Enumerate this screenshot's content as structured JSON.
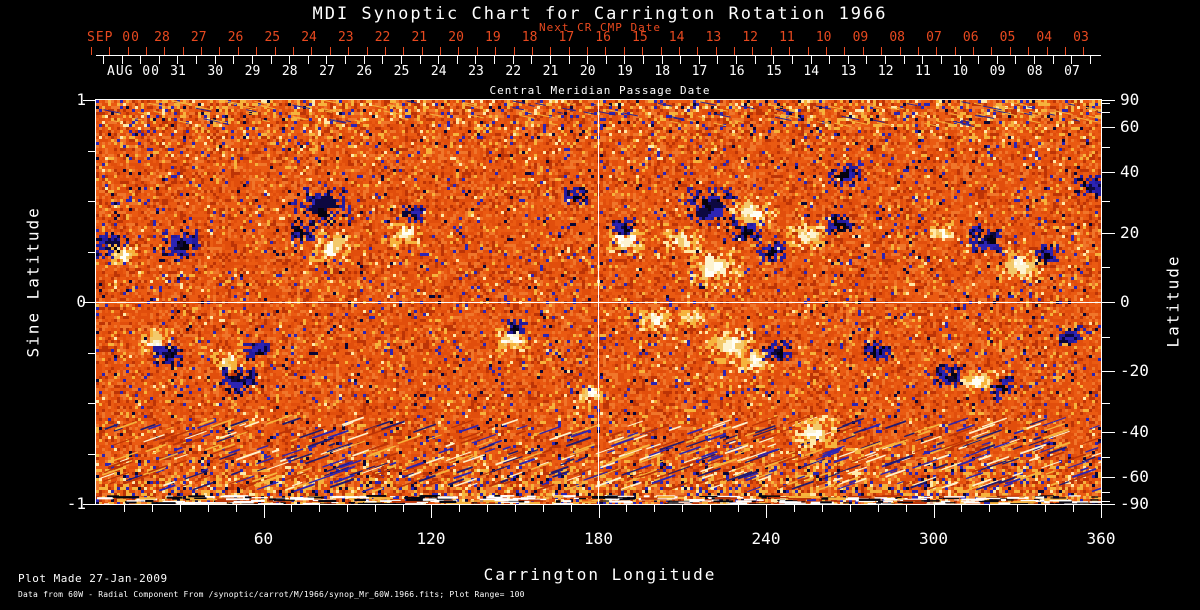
{
  "title": "MDI Synoptic Chart for Carrington Rotation 1966",
  "colors": {
    "background": "#000000",
    "text": "#ffffff",
    "accent_red": "#e8491f",
    "base_orange": "#e14e0c",
    "negative_polarity": "#0a0736",
    "positive_polarity": "#fffef6"
  },
  "top_axis": {
    "next_cr_label": "Next CR CMP Date",
    "next_cr_month": "SEP 00",
    "next_cr_days": [
      "28",
      "27",
      "26",
      "25",
      "24",
      "23",
      "22",
      "21",
      "20",
      "19",
      "18",
      "17",
      "16",
      "15",
      "14",
      "13",
      "12",
      "11",
      "10",
      "09",
      "08",
      "07",
      "06",
      "05",
      "04",
      "03"
    ],
    "cmp_month": "AUG 00",
    "cmp_days": [
      "31",
      "30",
      "29",
      "28",
      "27",
      "26",
      "25",
      "24",
      "23",
      "22",
      "21",
      "20",
      "19",
      "18",
      "17",
      "16",
      "15",
      "14",
      "13",
      "12",
      "11",
      "10",
      "09",
      "08",
      "07"
    ],
    "axis_title": "Central Meridian Passage Date"
  },
  "footer": {
    "line1": "Plot Made 27-Jan-2009",
    "line2": "Data from 60W - Radial Component From /synoptic/carrot/M/1966/synop_Mr_60W.1966.fits; Plot Range=  100"
  },
  "chart_data": {
    "type": "heatmap",
    "title": "MDI Synoptic Chart for Carrington Rotation 1966",
    "xlabel": "Carrington Longitude",
    "ylabel_left": "Sine Latitude",
    "ylabel_right": "Latitude",
    "xlim": [
      0,
      360
    ],
    "ylim_sine": [
      -1,
      1
    ],
    "x_ticks": [
      60,
      120,
      180,
      240,
      300,
      360
    ],
    "x_minor_step": 10,
    "y_left_ticks": [
      1,
      0,
      -1
    ],
    "y_left_minor_step": 0.25,
    "y_right_ticks": [
      90,
      60,
      40,
      20,
      0,
      -20,
      -40,
      -60,
      -90
    ],
    "y_right_minor_step": 10,
    "grid_crosshair": {
      "lon": 180,
      "sin_lat": 0
    },
    "plot_range_gauss": 100,
    "colormap_description": "orange-red quiet sun, blue/black negative polarity, white/yellow positive polarity; noisy high-latitude bands",
    "active_regions": [
      {
        "lon": 5.7,
        "sin_lat": 0.277,
        "size": 10,
        "pol": "-"
      },
      {
        "lon": 10.0,
        "sin_lat": 0.228,
        "size": 8,
        "pol": "+"
      },
      {
        "lon": 30.4,
        "sin_lat": 0.292,
        "size": 11,
        "pol": "-"
      },
      {
        "lon": 81.0,
        "sin_lat": 0.47,
        "size": 16,
        "pol": "-"
      },
      {
        "lon": 84.0,
        "sin_lat": 0.267,
        "size": 12,
        "pol": "+"
      },
      {
        "lon": 74.0,
        "sin_lat": 0.347,
        "size": 7,
        "pol": "-"
      },
      {
        "lon": 111.0,
        "sin_lat": 0.337,
        "size": 9,
        "pol": "+"
      },
      {
        "lon": 113.5,
        "sin_lat": 0.436,
        "size": 6,
        "pol": "-"
      },
      {
        "lon": 172.0,
        "sin_lat": 0.525,
        "size": 7,
        "pol": "-"
      },
      {
        "lon": 190.0,
        "sin_lat": 0.302,
        "size": 11,
        "pol": "+"
      },
      {
        "lon": 189.0,
        "sin_lat": 0.376,
        "size": 7,
        "pol": "-"
      },
      {
        "lon": 221.0,
        "sin_lat": 0.475,
        "size": 15,
        "pol": "-"
      },
      {
        "lon": 235.0,
        "sin_lat": 0.446,
        "size": 13,
        "pol": "+"
      },
      {
        "lon": 233.5,
        "sin_lat": 0.351,
        "size": 8,
        "pol": "-"
      },
      {
        "lon": 222.0,
        "sin_lat": 0.168,
        "size": 16,
        "pol": "+"
      },
      {
        "lon": 210.0,
        "sin_lat": 0.307,
        "size": 10,
        "pol": "+"
      },
      {
        "lon": 242.0,
        "sin_lat": 0.247,
        "size": 8,
        "pol": "-"
      },
      {
        "lon": 255.0,
        "sin_lat": 0.317,
        "size": 11,
        "pol": "+"
      },
      {
        "lon": 266.0,
        "sin_lat": 0.381,
        "size": 8,
        "pol": "-"
      },
      {
        "lon": 268.0,
        "sin_lat": 0.624,
        "size": 9,
        "pol": "-"
      },
      {
        "lon": 303.0,
        "sin_lat": 0.347,
        "size": 7,
        "pol": "+"
      },
      {
        "lon": 319.0,
        "sin_lat": 0.302,
        "size": 10,
        "pol": "-"
      },
      {
        "lon": 331.0,
        "sin_lat": 0.178,
        "size": 13,
        "pol": "+"
      },
      {
        "lon": 341.0,
        "sin_lat": 0.238,
        "size": 7,
        "pol": "-"
      },
      {
        "lon": 356.0,
        "sin_lat": 0.574,
        "size": 8,
        "pol": "-"
      },
      {
        "lon": 21.5,
        "sin_lat": -0.193,
        "size": 10,
        "pol": "+"
      },
      {
        "lon": 25.4,
        "sin_lat": -0.267,
        "size": 9,
        "pol": "-"
      },
      {
        "lon": 47.0,
        "sin_lat": -0.292,
        "size": 8,
        "pol": "+"
      },
      {
        "lon": 51.0,
        "sin_lat": -0.391,
        "size": 10,
        "pol": "-"
      },
      {
        "lon": 57.7,
        "sin_lat": -0.238,
        "size": 7,
        "pol": "-"
      },
      {
        "lon": 149.0,
        "sin_lat": -0.188,
        "size": 9,
        "pol": "+"
      },
      {
        "lon": 150.5,
        "sin_lat": -0.119,
        "size": 6,
        "pol": "-"
      },
      {
        "lon": 177.0,
        "sin_lat": -0.455,
        "size": 7,
        "pol": "+"
      },
      {
        "lon": 200.0,
        "sin_lat": -0.089,
        "size": 9,
        "pol": "+"
      },
      {
        "lon": 213.5,
        "sin_lat": -0.074,
        "size": 7,
        "pol": "+"
      },
      {
        "lon": 227.5,
        "sin_lat": -0.218,
        "size": 14,
        "pol": "+"
      },
      {
        "lon": 236.8,
        "sin_lat": -0.292,
        "size": 10,
        "pol": "+"
      },
      {
        "lon": 244.0,
        "sin_lat": -0.243,
        "size": 8,
        "pol": "-"
      },
      {
        "lon": 257.6,
        "sin_lat": -0.639,
        "size": 13,
        "pol": "+"
      },
      {
        "lon": 279.8,
        "sin_lat": -0.243,
        "size": 8,
        "pol": "-"
      },
      {
        "lon": 306.0,
        "sin_lat": -0.366,
        "size": 9,
        "pol": "-"
      },
      {
        "lon": 315.6,
        "sin_lat": -0.391,
        "size": 9,
        "pol": "+"
      },
      {
        "lon": 325.0,
        "sin_lat": -0.416,
        "size": 7,
        "pol": "-"
      },
      {
        "lon": 349.0,
        "sin_lat": -0.168,
        "size": 7,
        "pol": "-"
      }
    ]
  }
}
